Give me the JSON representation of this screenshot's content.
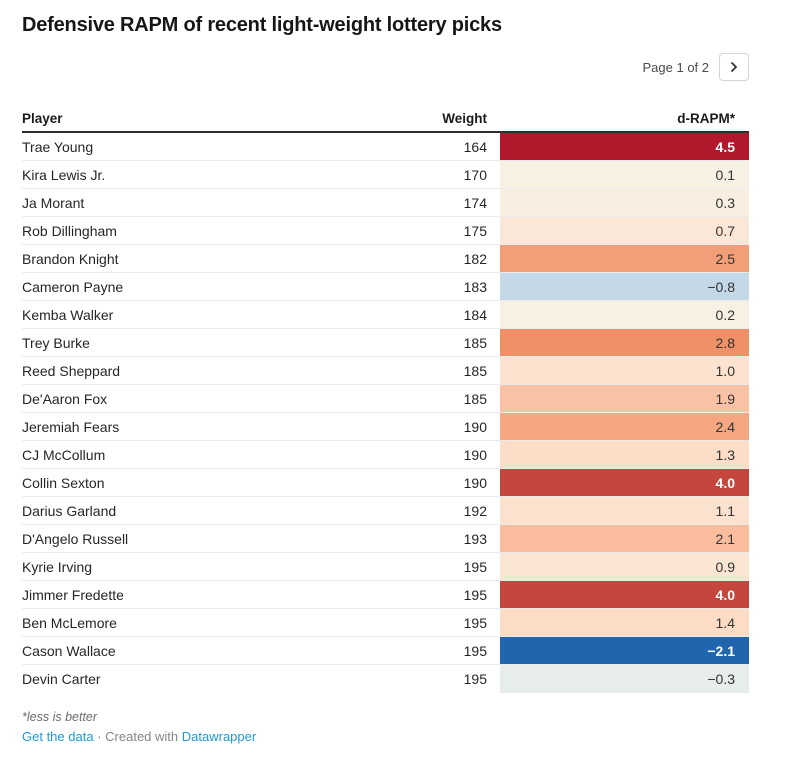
{
  "header": {
    "title": "Defensive RAPM of recent light-weight lottery picks"
  },
  "pagination": {
    "label": "Page 1 of 2",
    "next_icon": "chevron-right"
  },
  "table": {
    "columns": [
      "Player",
      "Weight",
      "d-RAPM*"
    ],
    "rows": [
      {
        "player": "Trae Young",
        "weight": "164",
        "d_rapm": "4.5",
        "bg": "#b2182b",
        "fg": "#ffffff"
      },
      {
        "player": "Kira Lewis Jr.",
        "weight": "170",
        "d_rapm": "0.1",
        "bg": "#f7f1e3",
        "fg": "#333333"
      },
      {
        "player": "Ja Morant",
        "weight": "174",
        "d_rapm": "0.3",
        "bg": "#f9efe0",
        "fg": "#333333"
      },
      {
        "player": "Rob Dillingham",
        "weight": "175",
        "d_rapm": "0.7",
        "bg": "#fbe7d7",
        "fg": "#333333"
      },
      {
        "player": "Brandon Knight",
        "weight": "182",
        "d_rapm": "2.5",
        "bg": "#f29e79",
        "fg": "#333333"
      },
      {
        "player": "Cameron Payne",
        "weight": "183",
        "d_rapm": "−0.8",
        "bg": "#c5d8e8",
        "fg": "#333333"
      },
      {
        "player": "Kemba Walker",
        "weight": "184",
        "d_rapm": "0.2",
        "bg": "#f8f0e2",
        "fg": "#333333"
      },
      {
        "player": "Trey Burke",
        "weight": "185",
        "d_rapm": "2.8",
        "bg": "#ef9166",
        "fg": "#333333"
      },
      {
        "player": "Reed Sheppard",
        "weight": "185",
        "d_rapm": "1.0",
        "bg": "#fbe3d0",
        "fg": "#333333"
      },
      {
        "player": "De'Aaron Fox",
        "weight": "185",
        "d_rapm": "1.9",
        "bg": "#f9c2a4",
        "fg": "#333333"
      },
      {
        "player": "Jeremiah Fears",
        "weight": "190",
        "d_rapm": "2.4",
        "bg": "#f4a780",
        "fg": "#333333"
      },
      {
        "player": "CJ McCollum",
        "weight": "190",
        "d_rapm": "1.3",
        "bg": "#fcdec8",
        "fg": "#333333"
      },
      {
        "player": "Collin Sexton",
        "weight": "190",
        "d_rapm": "4.0",
        "bg": "#c5463c",
        "fg": "#ffffff"
      },
      {
        "player": "Darius Garland",
        "weight": "192",
        "d_rapm": "1.1",
        "bg": "#fbe2cf",
        "fg": "#333333"
      },
      {
        "player": "D'Angelo Russell",
        "weight": "193",
        "d_rapm": "2.1",
        "bg": "#f9bd9d",
        "fg": "#333333"
      },
      {
        "player": "Kyrie Irving",
        "weight": "195",
        "d_rapm": "0.9",
        "bg": "#fbe5d3",
        "fg": "#333333"
      },
      {
        "player": "Jimmer Fredette",
        "weight": "195",
        "d_rapm": "4.0",
        "bg": "#c5463c",
        "fg": "#ffffff"
      },
      {
        "player": "Ben McLemore",
        "weight": "195",
        "d_rapm": "1.4",
        "bg": "#fcdcc4",
        "fg": "#333333"
      },
      {
        "player": "Cason Wallace",
        "weight": "195",
        "d_rapm": "−2.1",
        "bg": "#2166ac",
        "fg": "#ffffff"
      },
      {
        "player": "Devin Carter",
        "weight": "195",
        "d_rapm": "−0.3",
        "bg": "#e7edea",
        "fg": "#333333"
      }
    ]
  },
  "chart_data": {
    "type": "table",
    "title": "Defensive RAPM of recent light-weight lottery picks",
    "columns": [
      "Player",
      "Weight",
      "d-RAPM*"
    ],
    "rows": [
      [
        "Trae Young",
        164,
        4.5
      ],
      [
        "Kira Lewis Jr.",
        170,
        0.1
      ],
      [
        "Ja Morant",
        174,
        0.3
      ],
      [
        "Rob Dillingham",
        175,
        0.7
      ],
      [
        "Brandon Knight",
        182,
        2.5
      ],
      [
        "Cameron Payne",
        183,
        -0.8
      ],
      [
        "Kemba Walker",
        184,
        0.2
      ],
      [
        "Trey Burke",
        185,
        2.8
      ],
      [
        "Reed Sheppard",
        185,
        1.0
      ],
      [
        "De'Aaron Fox",
        185,
        1.9
      ],
      [
        "Jeremiah Fears",
        190,
        2.4
      ],
      [
        "CJ McCollum",
        190,
        1.3
      ],
      [
        "Collin Sexton",
        190,
        4.0
      ],
      [
        "Darius Garland",
        192,
        1.1
      ],
      [
        "D'Angelo Russell",
        193,
        2.1
      ],
      [
        "Kyrie Irving",
        195,
        0.9
      ],
      [
        "Jimmer Fredette",
        195,
        4.0
      ],
      [
        "Ben McLemore",
        195,
        1.4
      ],
      [
        "Cason Wallace",
        195,
        -2.1
      ],
      [
        "Devin Carter",
        195,
        -0.3
      ]
    ],
    "heatmap_column": "d-RAPM*",
    "colormap": "diverging red (high) to blue (low), centered near 0",
    "pagination": "Page 1 of 2",
    "footnote": "*less is better"
  },
  "footer": {
    "footnote": "*less is better",
    "get_data_label": "Get the data",
    "dot": "·",
    "created_with": "Created with",
    "brand": "Datawrapper",
    "link_color": "#1d9bd7"
  }
}
